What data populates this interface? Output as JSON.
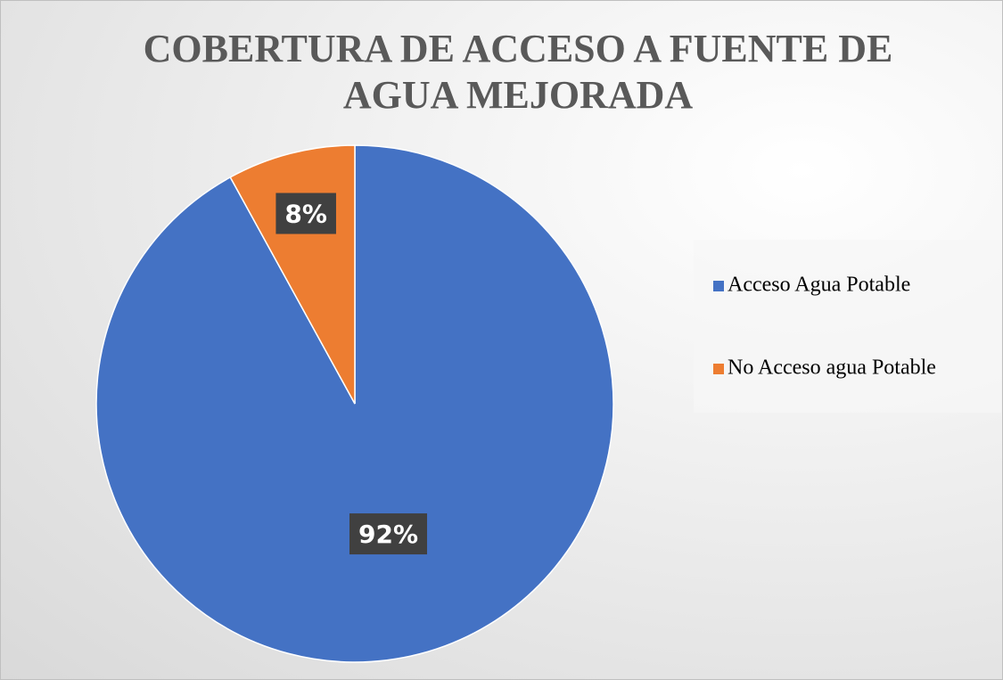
{
  "chart_data": {
    "type": "pie",
    "title": "COBERTURA DE ACCESO A FUENTE DE AGUA MEJORADA",
    "categories": [
      "Acceso Agua Potable",
      "No Acceso agua Potable"
    ],
    "values": [
      92,
      8
    ],
    "value_labels": [
      "92%",
      "8%"
    ],
    "colors": [
      "#4472c4",
      "#ed7d31"
    ],
    "legend": "right"
  }
}
